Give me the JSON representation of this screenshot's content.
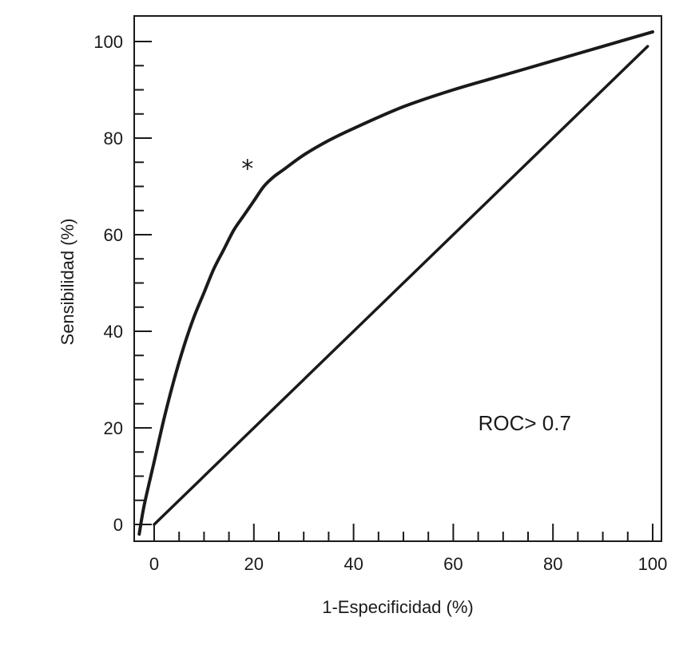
{
  "chart_data": {
    "type": "line",
    "title": "",
    "xlabel": "1-Especificidad (%)",
    "ylabel": "Sensibilidad (%)",
    "xlim": [
      -4,
      102
    ],
    "ylim": [
      -3,
      104
    ],
    "x_ticks": [
      0,
      20,
      40,
      60,
      80,
      100
    ],
    "y_ticks": [
      0,
      20,
      40,
      60,
      80,
      100
    ],
    "x_minor_step": 5,
    "y_minor_step": 5,
    "grid": false,
    "series": [
      {
        "style": "curve",
        "color": "#1a1a1a",
        "x": [
          -3,
          -2,
          0,
          2,
          4,
          6,
          8,
          10,
          12,
          14,
          16,
          18,
          20,
          22,
          24,
          26,
          30,
          35,
          40,
          50,
          60,
          70,
          80,
          90,
          100
        ],
        "y": [
          -2,
          4,
          13,
          22,
          30,
          37,
          43,
          48,
          53,
          57,
          61,
          64,
          67,
          70,
          72,
          73.5,
          76.5,
          79.5,
          82,
          86.5,
          90,
          93,
          96,
          99,
          102
        ]
      },
      {
        "style": "reference",
        "color": "#1a1a1a",
        "x": [
          0,
          99
        ],
        "y": [
          0,
          99
        ]
      }
    ],
    "annotations": [
      {
        "text": "ROC> 0.7",
        "x": 65,
        "y": 19.5
      },
      {
        "text": "*",
        "x": 17.5,
        "y": 72
      }
    ]
  }
}
